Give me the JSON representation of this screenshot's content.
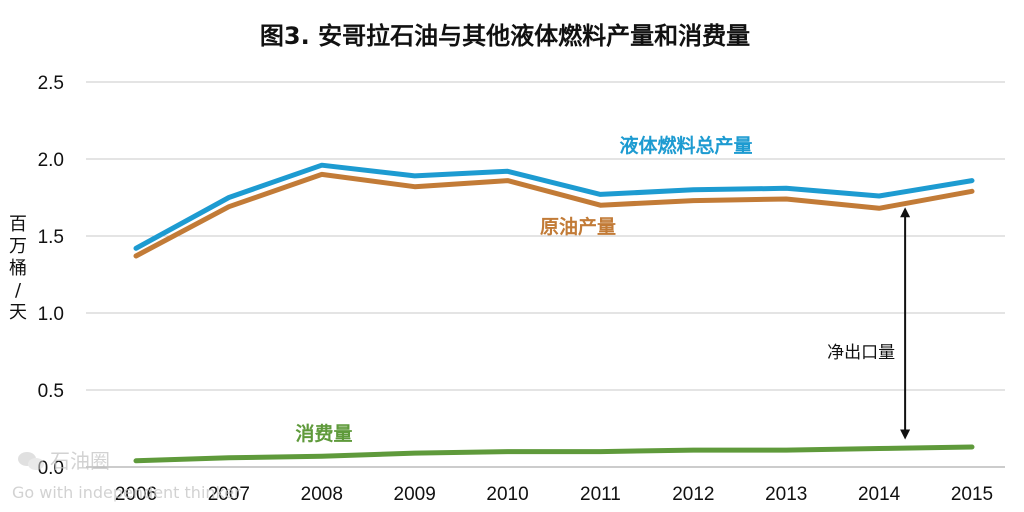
{
  "chart_data": {
    "type": "line",
    "title": "图3. 安哥拉石油与其他液体燃料产量和消费量",
    "ylabel": "百万桶/天",
    "xlabel": "",
    "ylim": [
      0,
      2.5
    ],
    "yticks": [
      "0.0",
      "0.5",
      "1.0",
      "1.5",
      "2.0",
      "2.5"
    ],
    "grid": true,
    "x": [
      "2006",
      "2007",
      "2008",
      "2009",
      "2010",
      "2011",
      "2012",
      "2013",
      "2014",
      "2015"
    ],
    "series": [
      {
        "name": "液体燃料总产量",
        "color": "#1d9bd1",
        "values": [
          1.42,
          1.75,
          1.96,
          1.89,
          1.92,
          1.77,
          1.8,
          1.81,
          1.76,
          1.86
        ]
      },
      {
        "name": "原油产量",
        "color": "#c27b37",
        "values": [
          1.37,
          1.69,
          1.9,
          1.82,
          1.86,
          1.7,
          1.73,
          1.74,
          1.68,
          1.79
        ]
      },
      {
        "name": "消费量",
        "color": "#5f9a3b",
        "values": [
          0.04,
          0.06,
          0.07,
          0.09,
          0.1,
          0.1,
          0.11,
          0.11,
          0.12,
          0.13
        ]
      }
    ],
    "annotations": [
      {
        "text": "净出口量",
        "kind": "double-arrow",
        "x": "2014",
        "y_from": 0.12,
        "y_to": 1.68
      }
    ]
  },
  "watermark": {
    "brand": "石油圈",
    "tagline": "Go with independent thinker",
    "icon": "wechat-icon"
  }
}
